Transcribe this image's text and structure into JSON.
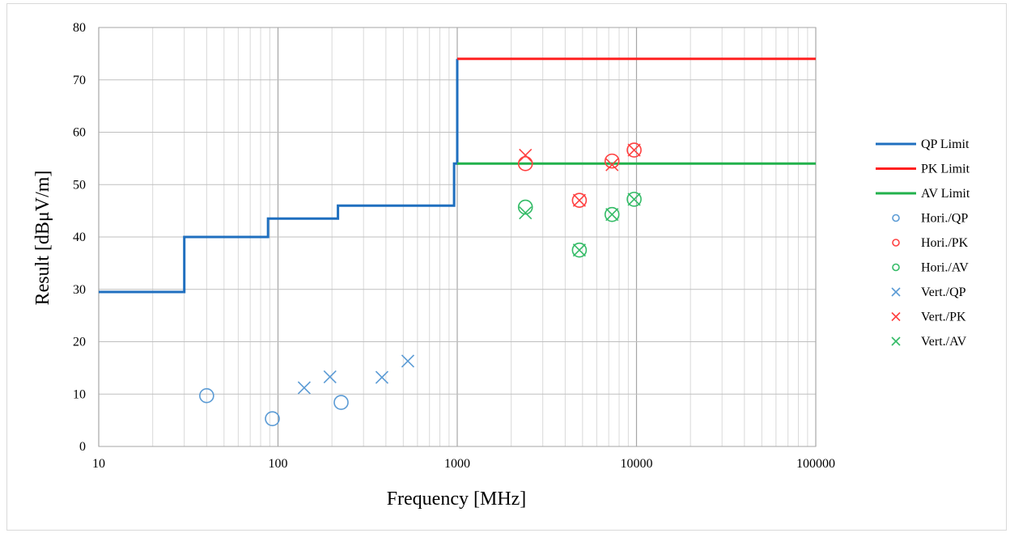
{
  "chart_data": {
    "type": "scatter",
    "title": "",
    "xlabel": "Frequency [MHz]",
    "ylabel": "Result [dBμV/m]",
    "xscale": "log",
    "xlim": [
      10,
      100000
    ],
    "ylim": [
      0,
      80
    ],
    "grid": true,
    "legend_position": "right",
    "x_ticks": [
      "10",
      "100",
      "1000",
      "10000",
      "100000"
    ],
    "y_ticks": [
      "0",
      "10",
      "20",
      "30",
      "40",
      "50",
      "60",
      "70",
      "80"
    ],
    "lines": [
      {
        "name": "QP Limit",
        "color": "#1f6fbf",
        "x": [
          10,
          30,
          30,
          88,
          88,
          216,
          216,
          960,
          960,
          1000,
          1000
        ],
        "y": [
          29.5,
          29.5,
          40,
          40,
          43.5,
          43.5,
          46,
          46,
          54,
          54,
          74
        ]
      },
      {
        "name": "PK Limit",
        "color": "#ff2020",
        "x": [
          1000,
          100000
        ],
        "y": [
          74,
          74
        ]
      },
      {
        "name": "AV Limit",
        "color": "#22b14c",
        "x": [
          1000,
          100000
        ],
        "y": [
          54,
          54
        ]
      }
    ],
    "series": [
      {
        "name": "Hori./QP",
        "marker": "circle",
        "color": "#5b9bd5",
        "x": [
          40,
          93,
          225
        ],
        "y": [
          9.7,
          5.3,
          8.4
        ]
      },
      {
        "name": "Hori./PK",
        "marker": "circle",
        "color": "#ff4040",
        "x": [
          2400,
          4800,
          7300,
          9700
        ],
        "y": [
          54,
          47,
          54.5,
          56.6
        ]
      },
      {
        "name": "Hori./AV",
        "marker": "circle",
        "color": "#33bb66",
        "x": [
          2400,
          4800,
          7300,
          9700
        ],
        "y": [
          45.7,
          37.5,
          44.3,
          47.2
        ]
      },
      {
        "name": "Vert./QP",
        "marker": "cross",
        "color": "#5b9bd5",
        "x": [
          140,
          195,
          380,
          530
        ],
        "y": [
          11.2,
          13.3,
          13.2,
          16.3
        ]
      },
      {
        "name": "Vert./PK",
        "marker": "cross",
        "color": "#ff4040",
        "x": [
          2400,
          4800,
          7300,
          9700
        ],
        "y": [
          55.6,
          47,
          53.8,
          56.6
        ]
      },
      {
        "name": "Vert./AV",
        "marker": "cross",
        "color": "#33bb66",
        "x": [
          2400,
          4800,
          7300,
          9700
        ],
        "y": [
          44.6,
          37.5,
          44.3,
          47.2
        ]
      }
    ]
  }
}
